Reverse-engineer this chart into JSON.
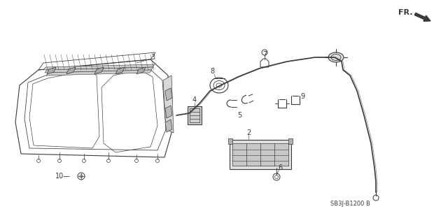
{
  "bg_color": "#ffffff",
  "line_color": "#3a3a3a",
  "diagram_code": "SB3J-B1200 B",
  "fr_label": "FR.",
  "figsize": [
    6.4,
    3.19
  ],
  "dpi": 100
}
